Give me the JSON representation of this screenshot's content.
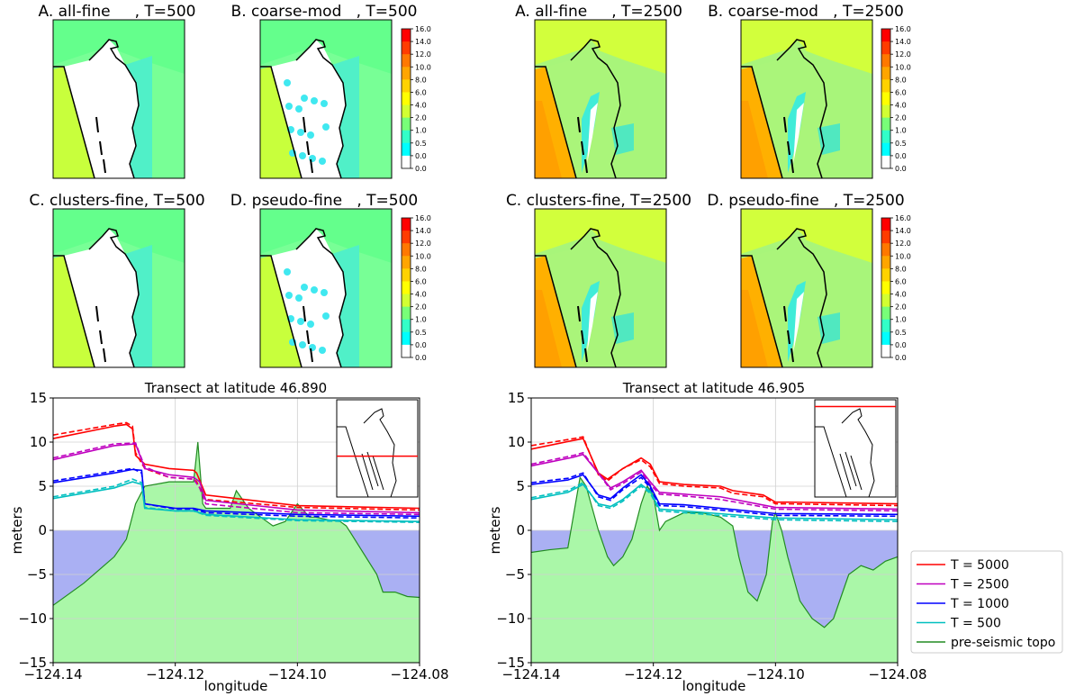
{
  "colorbar_ticks": [
    "16.0",
    "14.0",
    "12.0",
    "10.0",
    "8.0",
    "6.0",
    "4.0",
    "2.0",
    "1.0",
    "0.5",
    "0.0",
    "0.0"
  ],
  "colorbar_colors": [
    "#ff0000",
    "#ff3c00",
    "#ff7800",
    "#ffa500",
    "#ffd200",
    "#ffff00",
    "#d2ff32",
    "#78ff78",
    "#32ffc8",
    "#00ffff",
    "#ffffff"
  ],
  "maps": {
    "row1": [
      {
        "title": "A. all-fine     , T=500",
        "variant": "A"
      },
      {
        "title": "B. coarse-mod   , T=500",
        "variant": "B"
      },
      {
        "title": "A. all-fine     , T=2500",
        "variant": "A"
      },
      {
        "title": "B. coarse-mod   , T=2500",
        "variant": "B"
      }
    ],
    "row2": [
      {
        "title": "C. clusters-fine, T=500",
        "variant": "C"
      },
      {
        "title": "D. pseudo-fine   , T=500",
        "variant": "D"
      },
      {
        "title": "C. clusters-fine, T=2500",
        "variant": "C"
      },
      {
        "title": "D. pseudo-fine   , T=2500",
        "variant": "D"
      }
    ]
  },
  "chart_data": [
    {
      "type": "line",
      "title": "Transect at latitude 46.890",
      "xlabel": "longitude",
      "ylabel": "meters",
      "xlim": [
        -124.14,
        -124.08
      ],
      "ylim": [
        -15,
        15
      ],
      "xticks": [
        "−124.14",
        "−124.12",
        "−124.10",
        "−124.08"
      ],
      "yticks": [
        "15",
        "10",
        "5",
        "0",
        "−5",
        "−10",
        "−15"
      ],
      "grid": true,
      "topo": {
        "x": [
          -124.14,
          -124.135,
          -124.13,
          -124.128,
          -124.1265,
          -124.125,
          -124.121,
          -124.117,
          -124.1163,
          -124.1155,
          -124.115,
          -124.111,
          -124.11,
          -124.108,
          -124.106,
          -124.104,
          -124.102,
          -124.1,
          -124.098,
          -124.097,
          -124.095,
          -124.093,
          -124.092,
          -124.087,
          -124.086,
          -124.084,
          -124.082,
          -124.08
        ],
        "y": [
          -8.5,
          -6,
          -3,
          -1,
          3,
          5,
          5.5,
          5.5,
          10,
          3,
          2.5,
          2.5,
          4.5,
          2.5,
          1.5,
          0.5,
          1,
          3,
          1.5,
          1.5,
          1.2,
          1,
          0.5,
          -5,
          -7,
          -7,
          -7.5,
          -7.6
        ]
      },
      "series": [
        {
          "name": "T = 5000",
          "color": "#ff0000",
          "x": [
            -124.14,
            -124.13,
            -124.128,
            -124.127,
            -124.1265,
            -124.125,
            -124.121,
            -124.117,
            -124.1165,
            -124.115,
            -124.1,
            -124.08
          ],
          "solid": [
            10.4,
            11.8,
            12,
            11.5,
            8.5,
            7.5,
            7,
            6.8,
            6.5,
            4,
            2.8,
            2.5
          ],
          "dashed": [
            10.8,
            12,
            12.2,
            11.8,
            8.8,
            7,
            6,
            5.8,
            5.5,
            3.5,
            2.6,
            2.3
          ]
        },
        {
          "name": "T = 2500",
          "color": "#bf00bf",
          "x": [
            -124.14,
            -124.13,
            -124.1265,
            -124.125,
            -124.121,
            -124.117,
            -124.116,
            -124.115,
            -124.1,
            -124.08
          ],
          "solid": [
            8,
            9.6,
            9.8,
            7,
            6.3,
            6,
            5.5,
            3.4,
            2.3,
            2
          ],
          "dashed": [
            8.2,
            9.8,
            9.9,
            7.2,
            6,
            5.8,
            4.8,
            3.0,
            2,
            1.8
          ]
        },
        {
          "name": "T = 1000",
          "color": "#0000ff",
          "x": [
            -124.14,
            -124.13,
            -124.127,
            -124.1255,
            -124.125,
            -124.12,
            -124.117,
            -124.115,
            -124.1,
            -124.08
          ],
          "solid": [
            5.4,
            6.5,
            6.9,
            6.8,
            3,
            2.5,
            2.5,
            2.2,
            1.8,
            1.6
          ],
          "dashed": [
            5.6,
            6.7,
            7,
            6.5,
            3,
            2.4,
            2.4,
            2.0,
            1.6,
            1.4
          ]
        },
        {
          "name": "T =  500",
          "color": "#00bfbf",
          "x": [
            -124.14,
            -124.13,
            -124.127,
            -124.1255,
            -124.125,
            -124.12,
            -124.117,
            -124.115,
            -124.1,
            -124.08
          ],
          "solid": [
            3.6,
            4.8,
            5.5,
            5.2,
            2.5,
            2.2,
            2.2,
            1.8,
            1.2,
            1
          ],
          "dashed": [
            3.8,
            5,
            5.8,
            5.4,
            2.6,
            2.2,
            2.2,
            1.7,
            1.1,
            0.9
          ]
        }
      ],
      "inset_line": 0.58
    },
    {
      "type": "line",
      "title": "Transect at latitude 46.905",
      "xlabel": "longitude",
      "ylabel": "meters",
      "xlim": [
        -124.14,
        -124.08
      ],
      "ylim": [
        -15,
        15
      ],
      "xticks": [
        "−124.14",
        "−124.12",
        "−124.10",
        "−124.08"
      ],
      "yticks": [
        "15",
        "10",
        "5",
        "0",
        "−5",
        "−10",
        "−15"
      ],
      "grid": true,
      "topo": {
        "x": [
          -124.14,
          -124.137,
          -124.134,
          -124.133,
          -124.132,
          -124.131,
          -124.129,
          -124.1275,
          -124.1265,
          -124.125,
          -124.1235,
          -124.122,
          -124.121,
          -124.12,
          -124.119,
          -124.118,
          -124.115,
          -124.112,
          -124.109,
          -124.107,
          -124.106,
          -124.1045,
          -124.103,
          -124.1015,
          -124.1005,
          -124.1,
          -124.0995,
          -124.099,
          -124.098,
          -124.096,
          -124.094,
          -124.093,
          -124.092,
          -124.0905,
          -124.088,
          -124.086,
          -124.084,
          -124.082,
          -124.08
        ],
        "y": [
          -2.5,
          -2.2,
          -2,
          2,
          6,
          5,
          0,
          -3,
          -4,
          -3,
          -1,
          3,
          5,
          4,
          0,
          1,
          2,
          2,
          1.5,
          0.5,
          -3,
          -7,
          -8,
          -5,
          1,
          2,
          1,
          0,
          -3,
          -8,
          -10,
          -10.5,
          -11,
          -10,
          -5,
          -4,
          -4.5,
          -3.5,
          -3
        ]
      },
      "series": [
        {
          "name": "T = 5000",
          "color": "#ff0000",
          "x": [
            -124.14,
            -124.133,
            -124.1315,
            -124.129,
            -124.1275,
            -124.125,
            -124.122,
            -124.1205,
            -124.119,
            -124.115,
            -124.109,
            -124.107,
            -124.102,
            -124.1,
            -124.098,
            -124.08
          ],
          "solid": [
            9.2,
            10.2,
            10.4,
            6.5,
            5.8,
            7,
            8.2,
            7.5,
            5.5,
            5.2,
            5,
            4.5,
            4,
            3.2,
            3.2,
            3
          ],
          "dashed": [
            9.6,
            10.4,
            10.6,
            6.3,
            5.6,
            7,
            8,
            7.2,
            5.3,
            5,
            4.8,
            4.2,
            3.8,
            3,
            3,
            2.8
          ]
        },
        {
          "name": "T = 2500",
          "color": "#bf00bf",
          "x": [
            -124.14,
            -124.133,
            -124.1315,
            -124.127,
            -124.125,
            -124.122,
            -124.1205,
            -124.119,
            -124.115,
            -124.109,
            -124.1,
            -124.08
          ],
          "solid": [
            7.3,
            8.3,
            8.6,
            4.8,
            5.5,
            6.8,
            5.5,
            4.3,
            4.1,
            3.8,
            2.6,
            2.4
          ],
          "dashed": [
            7.5,
            8.5,
            8.8,
            4.6,
            5.3,
            6.6,
            5.2,
            4.1,
            3.9,
            3.5,
            2.4,
            2.2
          ]
        },
        {
          "name": "T = 1000",
          "color": "#0000ff",
          "x": [
            -124.14,
            -124.134,
            -124.1315,
            -124.129,
            -124.127,
            -124.125,
            -124.122,
            -124.1205,
            -124.119,
            -124.115,
            -124.1,
            -124.08
          ],
          "solid": [
            5.2,
            5.7,
            6.3,
            4,
            3.6,
            4.8,
            6.3,
            5,
            3,
            2.9,
            1.9,
            1.8
          ],
          "dashed": [
            5.4,
            5.9,
            6.5,
            3.8,
            3.4,
            4.6,
            6,
            4.8,
            2.8,
            2.7,
            1.7,
            1.6
          ]
        },
        {
          "name": "T =  500",
          "color": "#00bfbf",
          "x": [
            -124.14,
            -124.134,
            -124.1315,
            -124.129,
            -124.127,
            -124.125,
            -124.122,
            -124.1205,
            -124.119,
            -124.115,
            -124.1,
            -124.08
          ],
          "solid": [
            3.5,
            4.3,
            5.2,
            3,
            2.7,
            3.5,
            5.2,
            4.4,
            2.4,
            2.2,
            1.4,
            1.2
          ],
          "dashed": [
            3.7,
            4.5,
            5.4,
            2.8,
            2.5,
            3.3,
            5.0,
            4.2,
            2.2,
            2.0,
            1.2,
            1.0
          ]
        }
      ],
      "inset_line": 0.07
    }
  ],
  "legend": [
    {
      "label": "T = 5000",
      "color": "#ff0000"
    },
    {
      "label": "T = 2500",
      "color": "#bf00bf"
    },
    {
      "label": "T = 1000",
      "color": "#0000ff"
    },
    {
      "label": "T =  500",
      "color": "#00bfbf"
    },
    {
      "label": "pre-seismic topo",
      "color": "#228B22"
    }
  ],
  "colors": {
    "topo_fill": "#aaf7a8",
    "topo_line": "#228B22",
    "water_fill": "#aab0f3",
    "grid": "#d0d0d0"
  }
}
